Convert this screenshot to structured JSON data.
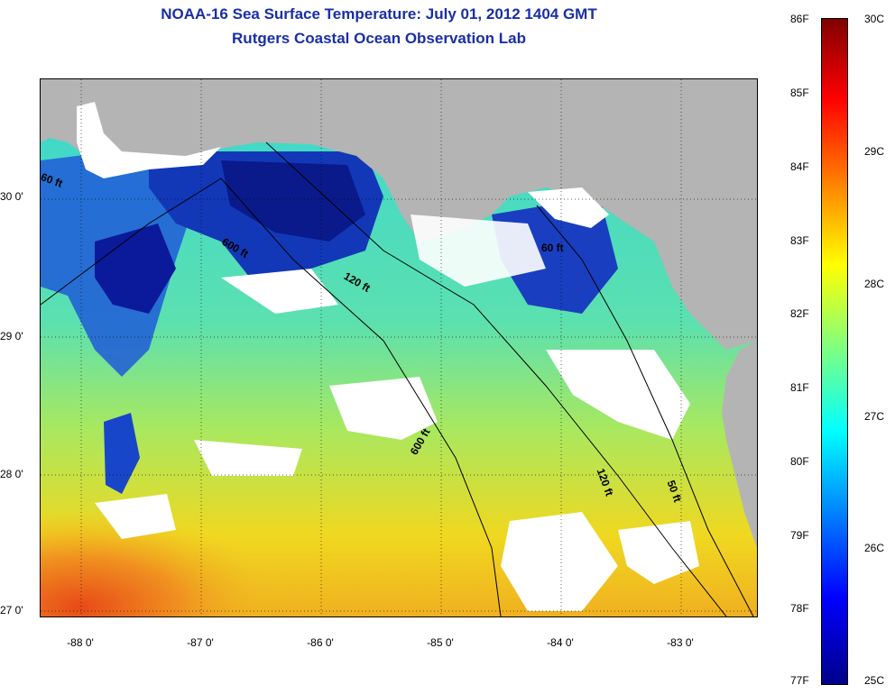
{
  "title_line1": "NOAA-16 Sea Surface Temperature:  July 01, 2012 1404 GMT",
  "title_line2": "Rutgers Coastal Ocean Observation Lab",
  "axes": {
    "lat_labels": [
      "30 0'",
      "29 0'",
      "28 0'",
      "27 0'"
    ],
    "lon_labels": [
      "-88 0'",
      "-87 0'",
      "-86 0'",
      "-85 0'",
      "-84 0'",
      "-83 0'"
    ]
  },
  "contours": {
    "c60_west": "60 ft",
    "c600_upper": "600 ft",
    "c120_mid": "120 ft",
    "c60_east": "60 ft",
    "c600_lower": "600 ft",
    "c120_lower": "120 ft",
    "c50": "50 ft"
  },
  "colorbar": {
    "f_labels": [
      "86F",
      "85F",
      "84F",
      "83F",
      "82F",
      "81F",
      "80F",
      "79F",
      "78F",
      "77F"
    ],
    "c_labels": [
      "30C",
      "29C",
      "28C",
      "27C",
      "26C",
      "25C"
    ]
  },
  "colors": {
    "land": "#b4b4b4",
    "cloud": "#ffffff",
    "warm": "#e8501a",
    "cool": "#0a1a9a",
    "mid": "#40d8c8",
    "title": "#1a2fa6"
  }
}
